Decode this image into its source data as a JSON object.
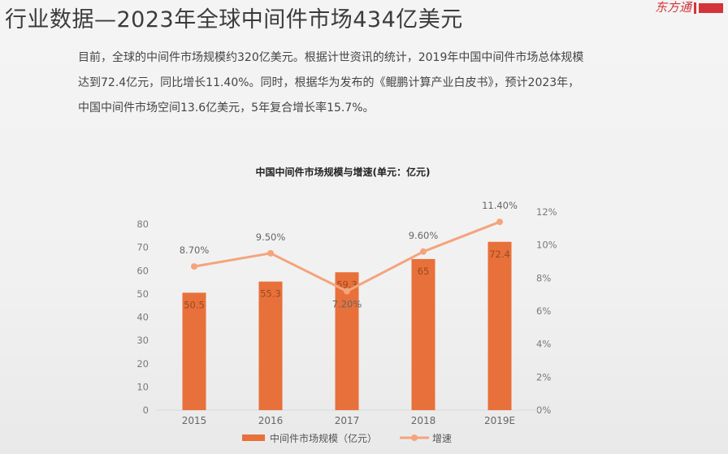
{
  "slide": {
    "title": "行业数据—2023年全球中间件市场434亿美元",
    "brand_text": "东方通",
    "paragraph_lines": [
      "目前，全球的中间件市场规模约320亿美元。根据计世资讯的统计，2019年中国中间件市场总体规模",
      "达到72.4亿元，同比增长11.40%。同时，根据华为发布的《鲲鹏计算产业白皮书》，预计2023年，",
      "中国中间件市场空间13.6亿美元，5年复合增长率15.7%。"
    ]
  },
  "colors": {
    "bar": "#e8703a",
    "line": "#f4a47c",
    "axis_text": "#7a7a7a"
  },
  "chart_data": {
    "type": "bar",
    "title": "中国中间件市场规模与增速(单元：亿元)",
    "categories": [
      "2015",
      "2016",
      "2017",
      "2018",
      "2019E"
    ],
    "series": [
      {
        "name": "中间件市场规模（亿元）",
        "type": "bar",
        "axis": "left",
        "values": [
          50.5,
          55.3,
          59.3,
          65,
          72.4
        ],
        "labels": [
          "50.5",
          "55.3",
          "59.3",
          "65",
          "72.4"
        ]
      },
      {
        "name": "增速",
        "type": "line",
        "axis": "right",
        "values": [
          8.7,
          9.5,
          7.2,
          9.6,
          11.4
        ],
        "labels": [
          "8.70%",
          "9.50%",
          "7.20%",
          "9.60%",
          "11.40%"
        ]
      }
    ],
    "y_left": {
      "min": 0,
      "max": 80,
      "ticks": [
        "0",
        "10",
        "20",
        "30",
        "40",
        "50",
        "60",
        "70",
        "80"
      ]
    },
    "y_right": {
      "min": 0,
      "max": 12,
      "ticks": [
        "0%",
        "2%",
        "4%",
        "6%",
        "8%",
        "10%",
        "12%"
      ]
    },
    "legend_position": "bottom",
    "grid": false
  }
}
